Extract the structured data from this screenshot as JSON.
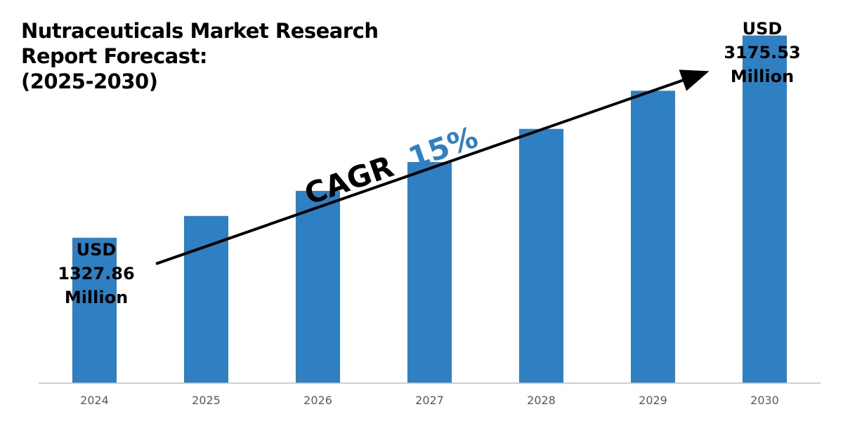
{
  "title_lines": [
    "Nutraceuticals Market Research",
    "Report Forecast:",
    "(2025-2030)"
  ],
  "start_callout": [
    "USD",
    "1327.86",
    "Million"
  ],
  "end_callout": [
    "USD",
    "3175.53",
    "Million"
  ],
  "cagr": {
    "prefix": "CAGR",
    "value": "15%"
  },
  "colors": {
    "bar": "#2E80C3",
    "cagr_value": "#2E80C3",
    "text": "#000000",
    "axis": "#BFBFBF"
  },
  "chart_data": {
    "type": "bar",
    "title": "Nutraceuticals Market Research Report Forecast: (2025-2030)",
    "categories": [
      "2024",
      "2025",
      "2026",
      "2027",
      "2028",
      "2029",
      "2030"
    ],
    "values": [
      1327.86,
      1527.04,
      1756.1,
      2019.51,
      2322.44,
      2670.81,
      3175.53
    ],
    "ylim": [
      0,
      3500
    ],
    "grid": false,
    "legend": "none",
    "annotations": [
      "USD 1327.86 Million",
      "USD 3175.53 Million",
      "CAGR 15%"
    ]
  }
}
